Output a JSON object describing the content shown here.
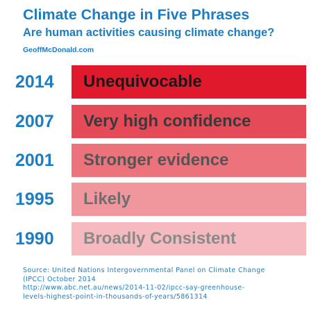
{
  "header": {
    "title": "Climate Change in Five Phrases",
    "subtitle": "Are human activities causing climate change?",
    "credit": "GeoffMcDonald.com"
  },
  "rows": [
    {
      "year": "2014",
      "phrase": "Unequivocable",
      "color": "#e1192d",
      "text_color": "#1a1a1a"
    },
    {
      "year": "2007",
      "phrase": "Very high confidence",
      "color": "#e54a58",
      "text_color": "#3a3a3a"
    },
    {
      "year": "2001",
      "phrase": "Stronger evidence",
      "color": "#ec727c",
      "text_color": "#555555"
    },
    {
      "year": "1995",
      "phrase": "Likely",
      "color": "#f0969d",
      "text_color": "#6e6e6e"
    },
    {
      "year": "1990",
      "phrase": "Broadly Consistent",
      "color": "#f5b9be",
      "text_color": "#8a8a8a"
    }
  ],
  "source": [
    "Source: United Nations Intergovernmental Panel on Climate Change",
    "(IPCC) October 2014",
    "http://www.abc.net.au/news/2014-11-02/ipcc-say-greenhouse-",
    "levels-highest-point-in-thousands-of-years/5861314"
  ]
}
